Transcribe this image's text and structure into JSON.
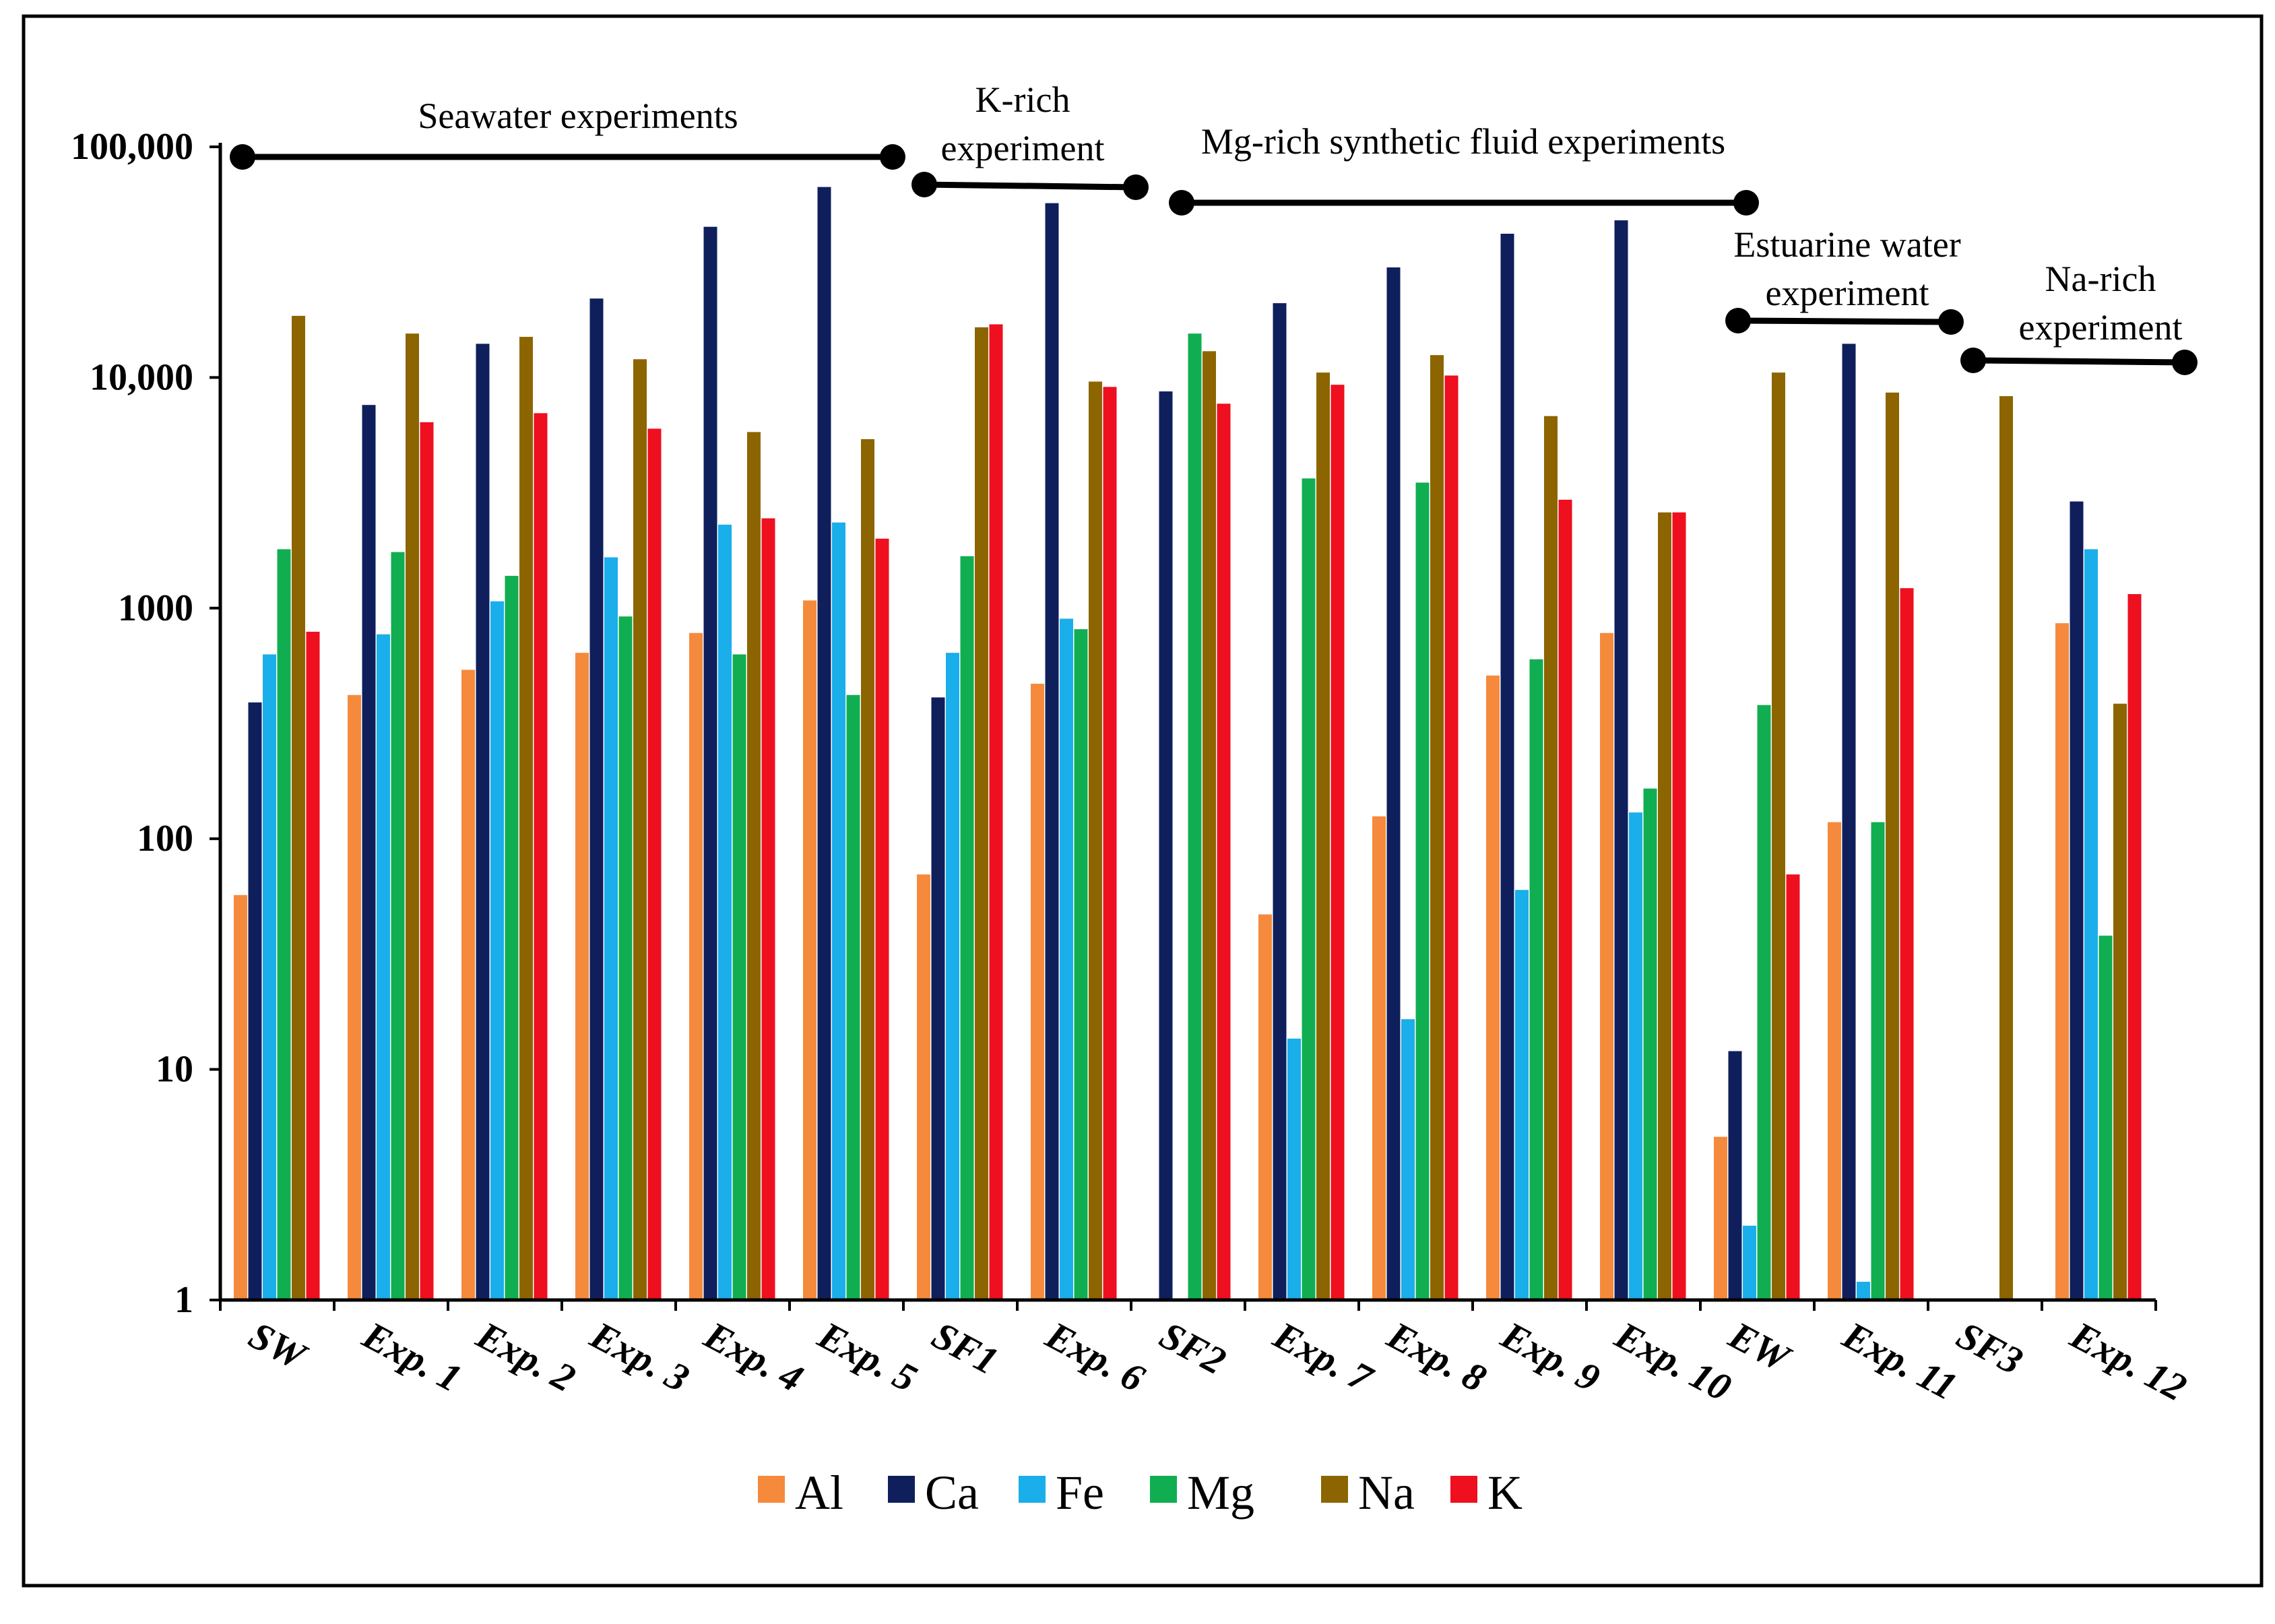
{
  "chart_data": {
    "type": "bar",
    "y_scale": "log",
    "ylim": [
      1,
      100000
    ],
    "y_ticks": [
      {
        "value": 1,
        "label": "1"
      },
      {
        "value": 10,
        "label": "10"
      },
      {
        "value": 100,
        "label": "100"
      },
      {
        "value": 1000,
        "label": "1000"
      },
      {
        "value": 10000,
        "label": "10,000"
      },
      {
        "value": 100000,
        "label": "100,000"
      }
    ],
    "categories": [
      "SW",
      "Exp. 1",
      "Exp. 2",
      "Exp. 3",
      "Exp. 4",
      "Exp. 5",
      "SF1",
      "Exp. 6",
      "SF2",
      "Exp. 7",
      "Exp. 8",
      "Exp. 9",
      "Exp. 10",
      "EW",
      "Exp. 11",
      "SF3",
      "Exp. 12"
    ],
    "series": [
      {
        "name": "Al",
        "color": "#F58A3C",
        "values": [
          57,
          420,
          540,
          640,
          780,
          1080,
          70,
          470,
          null,
          47,
          125,
          510,
          780,
          5.1,
          118,
          null,
          860
        ]
      },
      {
        "name": "Ca",
        "color": "#0F1F5C",
        "values": [
          390,
          7600,
          14000,
          22000,
          45000,
          67000,
          410,
          57000,
          8700,
          21000,
          30000,
          42000,
          48000,
          12,
          14000,
          null,
          2900
        ]
      },
      {
        "name": "Fe",
        "color": "#1AAEEA",
        "values": [
          630,
          770,
          1070,
          1660,
          2300,
          2350,
          640,
          900,
          null,
          13.6,
          16.5,
          60,
          130,
          2.1,
          1.2,
          null,
          1800
        ]
      },
      {
        "name": "Mg",
        "color": "#10AE50",
        "values": [
          1800,
          1750,
          1380,
          920,
          630,
          420,
          1680,
          810,
          15500,
          3650,
          3500,
          600,
          165,
          380,
          118,
          null,
          38
        ]
      },
      {
        "name": "Na",
        "color": "#8C6500",
        "values": [
          18500,
          15500,
          15000,
          12000,
          5800,
          5400,
          16500,
          9600,
          13000,
          10500,
          12500,
          6800,
          2600,
          10500,
          8600,
          8300,
          385
        ]
      },
      {
        "name": "K",
        "color": "#EE0F1F",
        "values": [
          790,
          6400,
          7000,
          6000,
          2450,
          2000,
          17000,
          9100,
          7700,
          9300,
          10200,
          2950,
          2600,
          70,
          1220,
          null,
          1150
        ]
      }
    ],
    "groups": [
      {
        "label_lines": [
          "Seawater experiments"
        ]
      },
      {
        "label_lines": [
          "K-rich",
          "experiment"
        ]
      },
      {
        "label_lines": [
          "Mg-rich synthetic fluid experiments"
        ]
      },
      {
        "label_lines": [
          "Estuarine water",
          "experiment"
        ]
      },
      {
        "label_lines": [
          "Na-rich",
          "experiment"
        ]
      }
    ],
    "legend": {
      "position": "bottom-center"
    }
  }
}
